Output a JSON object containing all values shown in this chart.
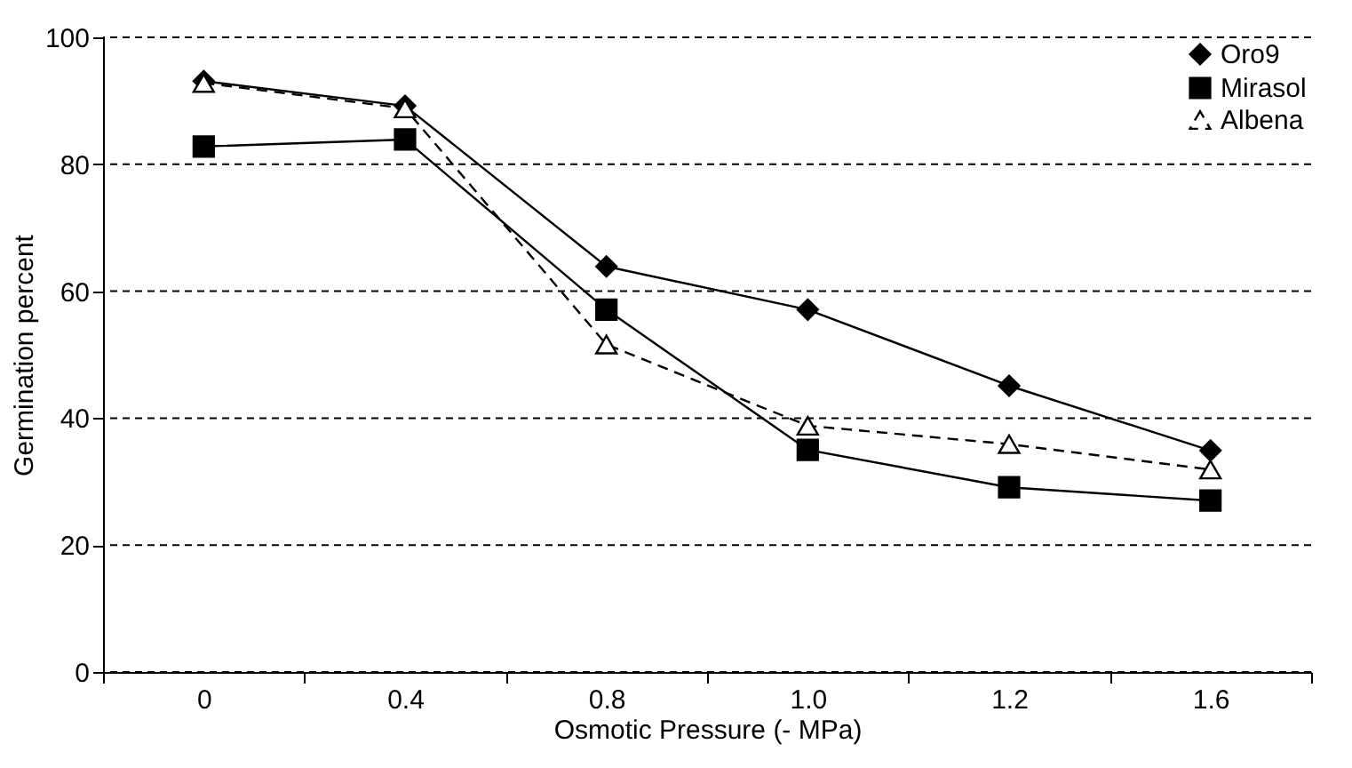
{
  "chart_data": {
    "type": "line",
    "xlabel": "Osmotic Pressure (- MPa)",
    "ylabel": "Germination percent",
    "categories": [
      "0",
      "0.4",
      "0.8",
      "1.0",
      "1.2",
      "1.6"
    ],
    "series": [
      {
        "name": "Oro9",
        "color": "#000000",
        "marker": "diamond",
        "line_style": "solid",
        "values": [
          93.1,
          89.2,
          63.9,
          57.1,
          45.1,
          34.9
        ]
      },
      {
        "name": "Mirasol",
        "color": "#000000",
        "marker": "square",
        "line_style": "solid",
        "values": [
          82.8,
          83.9,
          57.1,
          35,
          29.1,
          27
        ]
      },
      {
        "name": "Albena",
        "color": "#000000",
        "marker": "triangle",
        "line_style": "dashed",
        "values": [
          92.8,
          88.8,
          51.6,
          38.8,
          35.9,
          31.9
        ]
      }
    ],
    "ylim": [
      0,
      100
    ],
    "yticks": [
      0,
      20,
      40,
      60,
      80,
      100
    ],
    "grid": "y",
    "legend": "top right"
  }
}
